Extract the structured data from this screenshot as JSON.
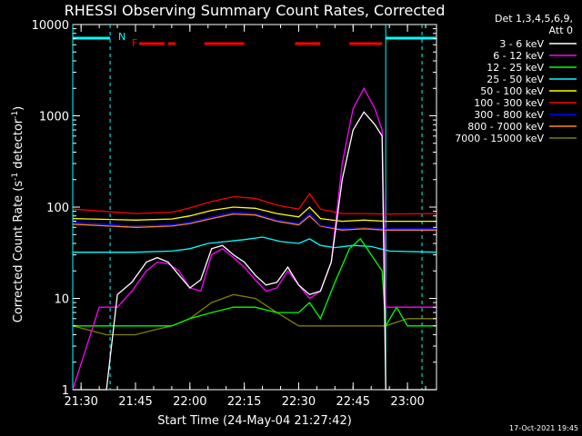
{
  "chart_data": {
    "type": "line",
    "title": "RHESSI Observing Summary Count Rates, Corrected",
    "xlabel": "Start Time (24-May-04 21:27:42)",
    "ylabel": "Corrected Count Rate (s⁻¹ detector⁻¹)",
    "ylabel_parts": {
      "main": "Corrected Count Rate (s",
      "sup": "-1",
      "mid": " detector",
      "sup2": "-1",
      "end": ")"
    },
    "y_scale": "log",
    "ylim": [
      1,
      10000
    ],
    "xlim": [
      "21:27:42",
      "23:08:00"
    ],
    "x_ticks": [
      "21:30",
      "21:45",
      "22:00",
      "22:15",
      "22:30",
      "22:45",
      "23:00"
    ],
    "y_ticks": [
      "1",
      "10",
      "100",
      "1000",
      "10000"
    ],
    "legend_header": [
      "Det 1,3,4,5,6,9,",
      "Att 0"
    ],
    "legend_position": "top-right-outside",
    "footer_date": "17-Oct-2021 19:45",
    "flag_labels": {
      "N": "N",
      "F": "F"
    },
    "series": [
      {
        "name": "3 - 6 keV",
        "color": "#ffffff",
        "values": [
          [
            "21:27:42",
            1
          ],
          [
            "21:37",
            1
          ],
          [
            "21:40",
            11
          ],
          [
            "21:44",
            15
          ],
          [
            "21:48",
            25
          ],
          [
            "21:51",
            28
          ],
          [
            "21:54",
            25
          ],
          [
            "21:57",
            18
          ],
          [
            "22:00",
            13
          ],
          [
            "22:03",
            16
          ],
          [
            "22:06",
            35
          ],
          [
            "22:09",
            38
          ],
          [
            "22:12",
            30
          ],
          [
            "22:15",
            25
          ],
          [
            "22:18",
            18
          ],
          [
            "22:21",
            14
          ],
          [
            "22:24",
            15
          ],
          [
            "22:27",
            22
          ],
          [
            "22:30",
            14
          ],
          [
            "22:33",
            11
          ],
          [
            "22:36",
            12
          ],
          [
            "22:39",
            25
          ],
          [
            "22:42",
            200
          ],
          [
            "22:45",
            700
          ],
          [
            "22:48",
            1100
          ],
          [
            "22:51",
            800
          ],
          [
            "22:53",
            600
          ],
          [
            "22:54",
            1
          ],
          [
            "23:08",
            1
          ]
        ]
      },
      {
        "name": "6 - 12 keV",
        "color": "#ff00ff",
        "values": [
          [
            "21:27:42",
            1
          ],
          [
            "21:35",
            8
          ],
          [
            "21:40",
            8
          ],
          [
            "21:44",
            12
          ],
          [
            "21:48",
            20
          ],
          [
            "21:51",
            25
          ],
          [
            "21:54",
            24
          ],
          [
            "21:57",
            20
          ],
          [
            "22:00",
            13
          ],
          [
            "22:03",
            12
          ],
          [
            "22:06",
            30
          ],
          [
            "22:09",
            35
          ],
          [
            "22:12",
            28
          ],
          [
            "22:15",
            22
          ],
          [
            "22:18",
            16
          ],
          [
            "22:21",
            12
          ],
          [
            "22:24",
            13
          ],
          [
            "22:27",
            20
          ],
          [
            "22:30",
            14
          ],
          [
            "22:33",
            10
          ],
          [
            "22:36",
            12
          ],
          [
            "22:39",
            25
          ],
          [
            "22:42",
            300
          ],
          [
            "22:45",
            1200
          ],
          [
            "22:48",
            2000
          ],
          [
            "22:51",
            1200
          ],
          [
            "22:53",
            700
          ],
          [
            "22:54",
            8
          ],
          [
            "23:08",
            8
          ]
        ]
      },
      {
        "name": "12 - 25 keV",
        "color": "#00ff00",
        "values": [
          [
            "21:27:42",
            5
          ],
          [
            "21:45",
            5
          ],
          [
            "21:55",
            5
          ],
          [
            "22:00",
            6
          ],
          [
            "22:06",
            7
          ],
          [
            "22:12",
            8
          ],
          [
            "22:18",
            8
          ],
          [
            "22:24",
            7
          ],
          [
            "22:30",
            7
          ],
          [
            "22:33",
            9
          ],
          [
            "22:36",
            6
          ],
          [
            "22:40",
            15
          ],
          [
            "22:44",
            35
          ],
          [
            "22:47",
            45
          ],
          [
            "22:50",
            30
          ],
          [
            "22:53",
            20
          ],
          [
            "22:54",
            5
          ],
          [
            "22:57",
            8
          ],
          [
            "23:00",
            5
          ],
          [
            "23:08",
            5
          ]
        ]
      },
      {
        "name": "25 - 50 keV",
        "color": "#00ffff",
        "values": [
          [
            "21:27:42",
            32
          ],
          [
            "21:45",
            32
          ],
          [
            "21:55",
            33
          ],
          [
            "22:00",
            35
          ],
          [
            "22:05",
            40
          ],
          [
            "22:10",
            42
          ],
          [
            "22:15",
            44
          ],
          [
            "22:20",
            47
          ],
          [
            "22:25",
            42
          ],
          [
            "22:30",
            40
          ],
          [
            "22:33",
            45
          ],
          [
            "22:36",
            38
          ],
          [
            "22:40",
            36
          ],
          [
            "22:45",
            38
          ],
          [
            "22:50",
            37
          ],
          [
            "22:55",
            33
          ],
          [
            "23:08",
            32
          ]
        ]
      },
      {
        "name": "50 - 100 keV",
        "color": "#ffff00",
        "values": [
          [
            "21:27:42",
            75
          ],
          [
            "21:45",
            72
          ],
          [
            "21:55",
            74
          ],
          [
            "22:00",
            80
          ],
          [
            "22:06",
            92
          ],
          [
            "22:12",
            100
          ],
          [
            "22:18",
            97
          ],
          [
            "22:24",
            85
          ],
          [
            "22:30",
            78
          ],
          [
            "22:33",
            100
          ],
          [
            "22:36",
            75
          ],
          [
            "22:42",
            70
          ],
          [
            "22:48",
            72
          ],
          [
            "22:54",
            70
          ],
          [
            "23:08",
            70
          ]
        ]
      },
      {
        "name": "100 - 300 keV",
        "color": "#ff0000",
        "values": [
          [
            "21:27:42",
            95
          ],
          [
            "21:45",
            85
          ],
          [
            "21:55",
            88
          ],
          [
            "22:00",
            98
          ],
          [
            "22:06",
            115
          ],
          [
            "22:12",
            130
          ],
          [
            "22:18",
            125
          ],
          [
            "22:24",
            105
          ],
          [
            "22:30",
            95
          ],
          [
            "22:33",
            140
          ],
          [
            "22:36",
            95
          ],
          [
            "22:42",
            85
          ],
          [
            "22:48",
            85
          ],
          [
            "22:54",
            84
          ],
          [
            "23:08",
            85
          ]
        ]
      },
      {
        "name": "300 - 800 keV",
        "color": "#0000ff",
        "values": [
          [
            "21:27:42",
            68
          ],
          [
            "21:45",
            62
          ],
          [
            "21:55",
            64
          ],
          [
            "22:00",
            68
          ],
          [
            "22:06",
            78
          ],
          [
            "22:12",
            88
          ],
          [
            "22:18",
            85
          ],
          [
            "22:24",
            72
          ],
          [
            "22:30",
            66
          ],
          [
            "22:33",
            85
          ],
          [
            "22:36",
            63
          ],
          [
            "22:42",
            58
          ],
          [
            "22:48",
            60
          ],
          [
            "22:54",
            58
          ],
          [
            "23:08",
            58
          ]
        ]
      },
      {
        "name": "800 - 7000 keV",
        "color": "#ff8c00",
        "values": [
          [
            "21:27:42",
            65
          ],
          [
            "21:45",
            60
          ],
          [
            "21:55",
            62
          ],
          [
            "22:00",
            66
          ],
          [
            "22:06",
            75
          ],
          [
            "22:12",
            84
          ],
          [
            "22:18",
            82
          ],
          [
            "22:24",
            70
          ],
          [
            "22:30",
            64
          ],
          [
            "22:33",
            80
          ],
          [
            "22:36",
            62
          ],
          [
            "22:42",
            56
          ],
          [
            "22:48",
            58
          ],
          [
            "22:54",
            56
          ],
          [
            "23:08",
            56
          ]
        ]
      },
      {
        "name": "7000 - 15000 keV",
        "color": "#808000",
        "values": [
          [
            "21:27:42",
            5
          ],
          [
            "21:37",
            4
          ],
          [
            "21:45",
            4
          ],
          [
            "21:50",
            4.5
          ],
          [
            "21:55",
            5
          ],
          [
            "22:00",
            6
          ],
          [
            "22:06",
            9
          ],
          [
            "22:12",
            11
          ],
          [
            "22:18",
            10
          ],
          [
            "22:24",
            7
          ],
          [
            "22:30",
            5
          ],
          [
            "22:36",
            5
          ],
          [
            "22:42",
            5
          ],
          [
            "22:48",
            5
          ],
          [
            "22:54",
            5
          ],
          [
            "23:00",
            6
          ],
          [
            "23:08",
            6
          ]
        ]
      }
    ],
    "flag_bars": [
      {
        "flag": "N",
        "color": "#00ffff",
        "intervals": [
          [
            "21:27:42",
            "21:38"
          ],
          [
            "22:54",
            "23:08"
          ]
        ]
      },
      {
        "flag": "F",
        "color": "#ff0000",
        "intervals": [
          [
            "21:46",
            "21:53"
          ],
          [
            "21:54",
            "21:56"
          ],
          [
            "22:04",
            "22:15"
          ],
          [
            "22:29",
            "22:36"
          ],
          [
            "22:44",
            "22:53"
          ]
        ]
      }
    ],
    "vertical_lines": {
      "cyan_solid": [
        "21:27:42",
        "22:54"
      ],
      "cyan_dashed": [
        "21:38",
        "23:04"
      ]
    }
  }
}
